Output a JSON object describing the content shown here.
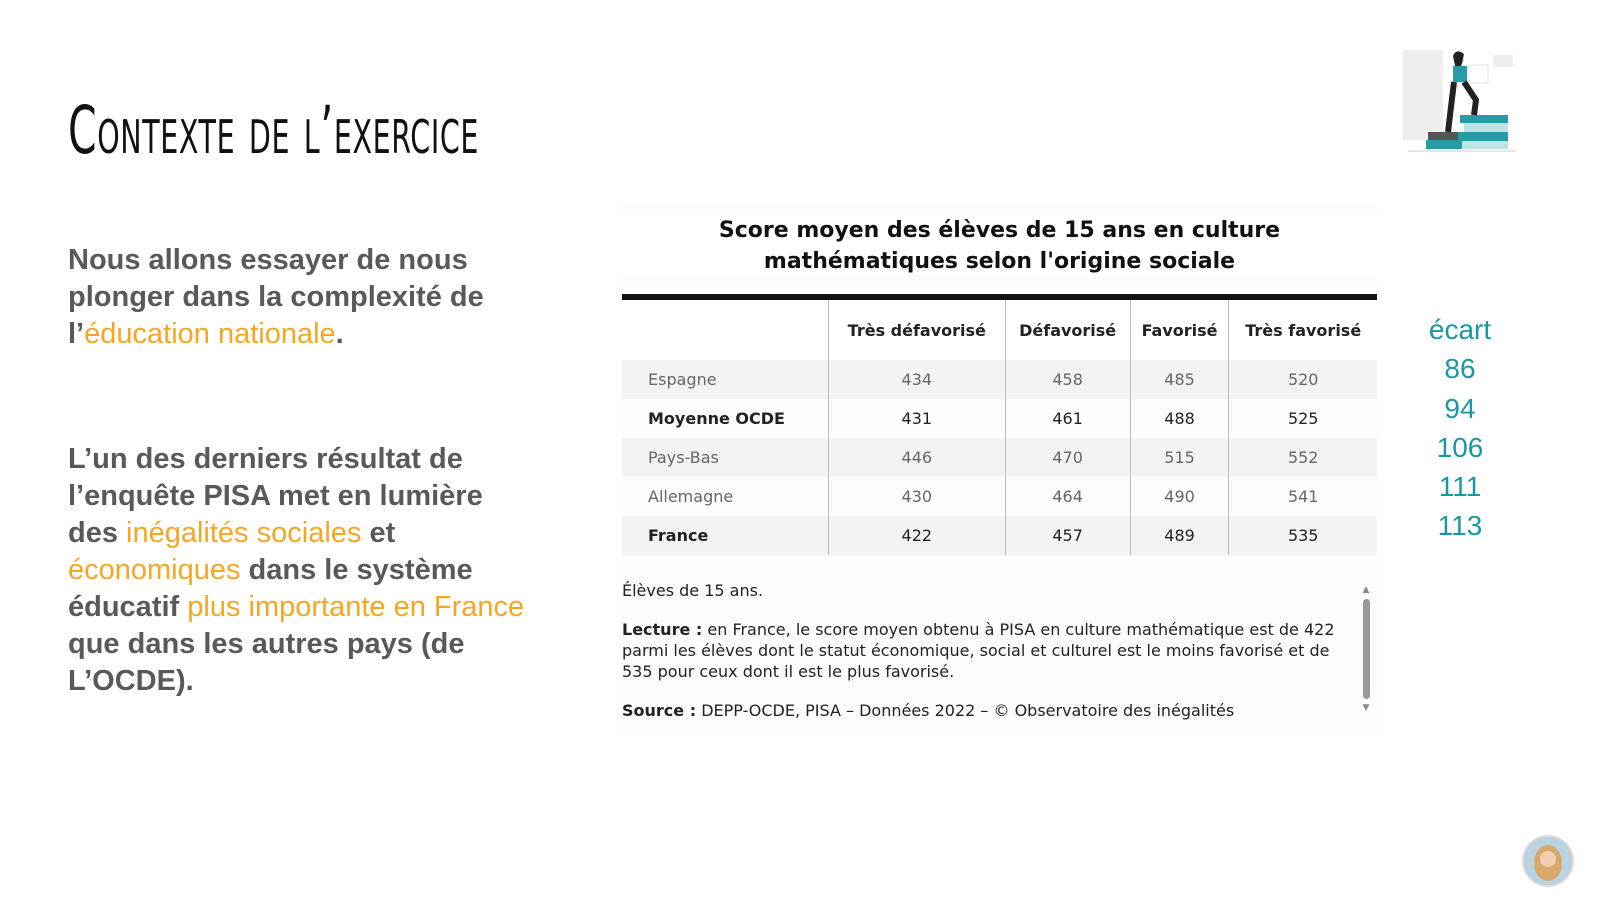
{
  "title": "Contexte de l’exercice",
  "intro": {
    "before": "Nous allons essayer de nous plonger dans la complexité de l’",
    "highlight": "éducation nationale",
    "after": "."
  },
  "finding": {
    "t1": "L’un des derniers résultat de l’enquête PISA met en lumière des ",
    "h1": "inégalités sociales",
    "t2": " et ",
    "h2": "économiques",
    "t3": " dans le système éducatif ",
    "h3": "plus importante en France",
    "t4": " que dans les autres pays (de L’OCDE)."
  },
  "colors": {
    "highlight": "#f5a623",
    "ecart": "#1a97a3"
  },
  "chart_data": {
    "type": "table",
    "title": "Score moyen des élèves de 15 ans en culture mathématiques selon l'origine sociale",
    "columns": [
      "",
      "Très défavorisé",
      "Défavorisé",
      "Favorisé",
      "Très favorisé"
    ],
    "rows": [
      {
        "label": "Espagne",
        "values": [
          "434",
          "458",
          "485",
          "520"
        ]
      },
      {
        "label": "Moyenne OCDE",
        "values": [
          "431",
          "461",
          "488",
          "525"
        ]
      },
      {
        "label": "Pays-Bas",
        "values": [
          "446",
          "470",
          "515",
          "552"
        ]
      },
      {
        "label": "Allemagne",
        "values": [
          "430",
          "464",
          "490",
          "541"
        ]
      },
      {
        "label": "France",
        "values": [
          "422",
          "457",
          "489",
          "535"
        ]
      }
    ],
    "ecart_header": "écart",
    "ecart": [
      "86",
      "94",
      "106",
      "111",
      "113"
    ]
  },
  "notes": {
    "population": "Élèves de 15 ans.",
    "lecture_label": "Lecture :",
    "lecture": " en France, le score moyen obtenu à PISA en culture mathématique est de 422 parmi les élèves dont le statut économique, social et culturel est le moins favorisé et de 535 pour ceux dont il est le plus favorisé.",
    "source_label": "Source :",
    "source": " DEPP-OCDE, PISA – Données 2022 – © Observatoire des inégalités"
  }
}
